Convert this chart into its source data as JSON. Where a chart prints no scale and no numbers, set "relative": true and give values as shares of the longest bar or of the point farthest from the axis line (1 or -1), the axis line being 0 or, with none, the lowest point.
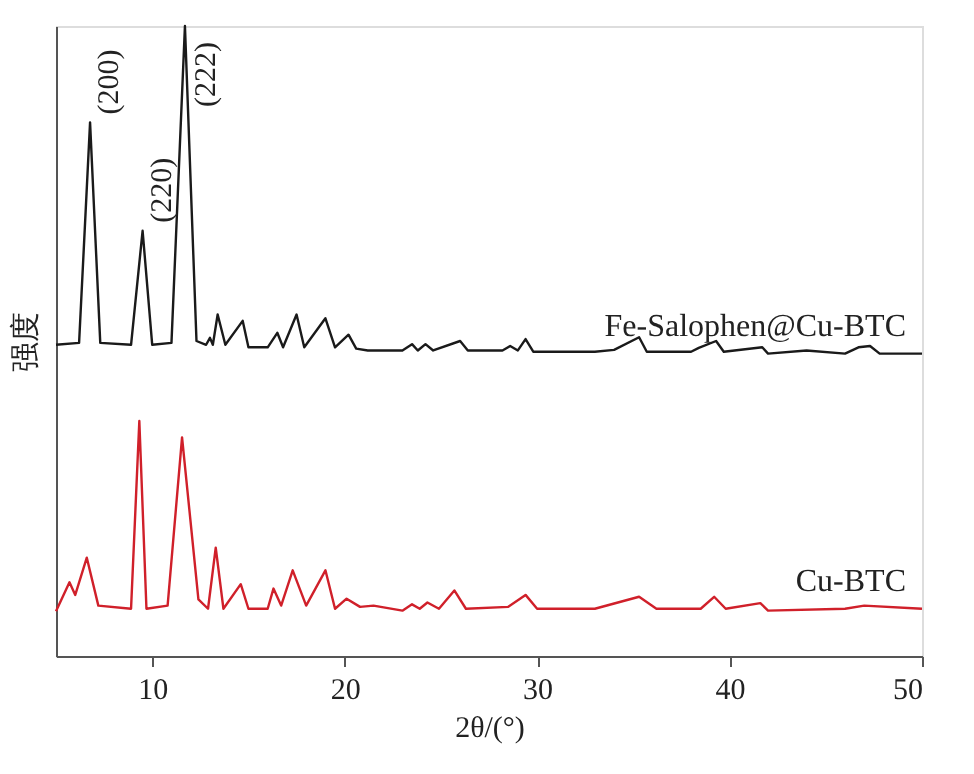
{
  "chart_data": {
    "type": "line",
    "relative": true,
    "xlabel": "2θ/(°)",
    "ylabel": "强度",
    "xlim": [
      5,
      50
    ],
    "xticks": [
      10,
      20,
      30,
      40,
      50
    ],
    "grid": false,
    "legend": false,
    "marker": "none",
    "line_style": "solid",
    "series": [
      {
        "name": "Fe-Salophen@Cu-BTC",
        "color": "#1a1a1a",
        "x": [
          5.0,
          6.2,
          6.77,
          7.3,
          8.9,
          9.5,
          10.0,
          11.0,
          11.7,
          12.3,
          12.8,
          13.0,
          13.15,
          13.4,
          13.8,
          14.7,
          15.0,
          16.0,
          16.5,
          16.8,
          17.5,
          17.9,
          19.0,
          19.5,
          20.2,
          20.6,
          21.2,
          23.0,
          23.5,
          23.8,
          24.2,
          24.6,
          26.0,
          26.4,
          28.2,
          28.6,
          29.0,
          29.4,
          29.8,
          33.0,
          34.0,
          35.3,
          35.7,
          38.0,
          38.4,
          39.3,
          39.7,
          41.7,
          42.0,
          44.0,
          46.0,
          46.7,
          47.3,
          47.8,
          50.0
        ],
        "values": [
          0.494,
          0.497,
          0.847,
          0.497,
          0.494,
          0.675,
          0.494,
          0.497,
          1.0,
          0.5,
          0.494,
          0.505,
          0.494,
          0.542,
          0.494,
          0.532,
          0.49,
          0.49,
          0.513,
          0.49,
          0.542,
          0.49,
          0.536,
          0.49,
          0.51,
          0.488,
          0.485,
          0.485,
          0.495,
          0.485,
          0.495,
          0.485,
          0.5,
          0.485,
          0.485,
          0.492,
          0.485,
          0.503,
          0.483,
          0.483,
          0.486,
          0.506,
          0.483,
          0.483,
          0.489,
          0.5,
          0.483,
          0.49,
          0.48,
          0.485,
          0.48,
          0.49,
          0.492,
          0.48,
          0.48
        ]
      },
      {
        "name": "Cu-BTC",
        "color": "#d0202a",
        "x": [
          5.0,
          5.7,
          6.0,
          6.6,
          7.2,
          8.9,
          9.33,
          9.7,
          10.8,
          11.55,
          12.4,
          12.9,
          13.3,
          13.7,
          14.6,
          15.0,
          16.0,
          16.3,
          16.7,
          17.3,
          18.0,
          19.0,
          19.5,
          20.1,
          20.8,
          21.5,
          23.0,
          23.5,
          23.9,
          24.3,
          24.9,
          25.7,
          26.3,
          28.5,
          29.4,
          30.0,
          33.0,
          35.3,
          36.2,
          38.5,
          39.2,
          39.8,
          41.6,
          42.0,
          46.0,
          47.0,
          50.0
        ],
        "values": [
          0.071,
          0.117,
          0.097,
          0.156,
          0.08,
          0.075,
          0.373,
          0.075,
          0.08,
          0.347,
          0.09,
          0.075,
          0.172,
          0.075,
          0.114,
          0.075,
          0.075,
          0.107,
          0.08,
          0.136,
          0.08,
          0.136,
          0.075,
          0.091,
          0.078,
          0.08,
          0.072,
          0.082,
          0.075,
          0.085,
          0.075,
          0.104,
          0.075,
          0.078,
          0.097,
          0.075,
          0.075,
          0.094,
          0.075,
          0.075,
          0.094,
          0.075,
          0.084,
          0.072,
          0.075,
          0.08,
          0.075
        ]
      }
    ],
    "annotations": [
      {
        "text": "(200)",
        "x": 6.77,
        "y": 0.847
      },
      {
        "text": "(220)",
        "x": 9.5,
        "y": 0.675
      },
      {
        "text": "(222)",
        "x": 11.7,
        "y": 1.0
      }
    ]
  }
}
